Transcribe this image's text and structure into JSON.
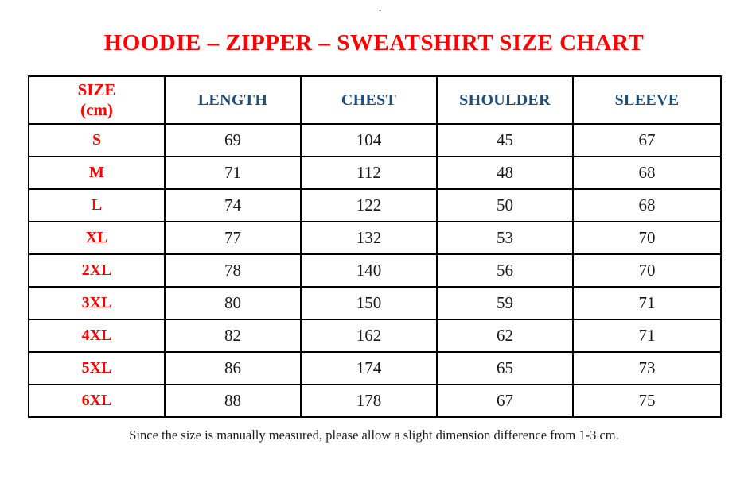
{
  "page": {
    "title": "HOODIE – ZIPPER – SWEATSHIRT SIZE CHART",
    "footnote": "Since the size is manually measured, please allow a slight dimension difference from 1-3 cm.",
    "stray_dot": "."
  },
  "colors": {
    "title_red": "#ff0000",
    "size_label_red": "#ff0000",
    "column_header_blue": "#1f4e79",
    "value_black": "#1a1a1a",
    "border_black": "#000000",
    "background": "#ffffff"
  },
  "table": {
    "size_header": {
      "line1": "SIZE",
      "line2": "(cm)"
    },
    "columns": [
      "LENGTH",
      "CHEST",
      "SHOULDER",
      "SLEEVE"
    ],
    "rows": [
      {
        "size": "S",
        "length": "69",
        "chest": "104",
        "shoulder": "45",
        "sleeve": "67"
      },
      {
        "size": "M",
        "length": "71",
        "chest": "112",
        "shoulder": "48",
        "sleeve": "68"
      },
      {
        "size": "L",
        "length": "74",
        "chest": "122",
        "shoulder": "50",
        "sleeve": "68"
      },
      {
        "size": "XL",
        "length": "77",
        "chest": "132",
        "shoulder": "53",
        "sleeve": "70"
      },
      {
        "size": "2XL",
        "length": "78",
        "chest": "140",
        "shoulder": "56",
        "sleeve": "70"
      },
      {
        "size": "3XL",
        "length": "80",
        "chest": "150",
        "shoulder": "59",
        "sleeve": "71"
      },
      {
        "size": "4XL",
        "length": "82",
        "chest": "162",
        "shoulder": "62",
        "sleeve": "71"
      },
      {
        "size": "5XL",
        "length": "86",
        "chest": "174",
        "shoulder": "65",
        "sleeve": "73"
      },
      {
        "size": "6XL",
        "length": "88",
        "chest": "178",
        "shoulder": "67",
        "sleeve": "75"
      }
    ]
  },
  "chart_data": {
    "type": "table",
    "title": "HOODIE – ZIPPER – SWEATSHIRT SIZE CHART",
    "units": "cm",
    "columns": [
      "SIZE (cm)",
      "LENGTH",
      "CHEST",
      "SHOULDER",
      "SLEEVE"
    ],
    "rows": [
      [
        "S",
        69,
        104,
        45,
        67
      ],
      [
        "M",
        71,
        112,
        48,
        68
      ],
      [
        "L",
        74,
        122,
        50,
        68
      ],
      [
        "XL",
        77,
        132,
        53,
        70
      ],
      [
        "2XL",
        78,
        140,
        56,
        70
      ],
      [
        "3XL",
        80,
        150,
        59,
        71
      ],
      [
        "4XL",
        82,
        162,
        62,
        71
      ],
      [
        "5XL",
        86,
        174,
        65,
        73
      ],
      [
        "6XL",
        88,
        178,
        67,
        75
      ]
    ],
    "footnote": "Since the size is manually measured, please allow a slight dimension difference from 1-3 cm."
  }
}
